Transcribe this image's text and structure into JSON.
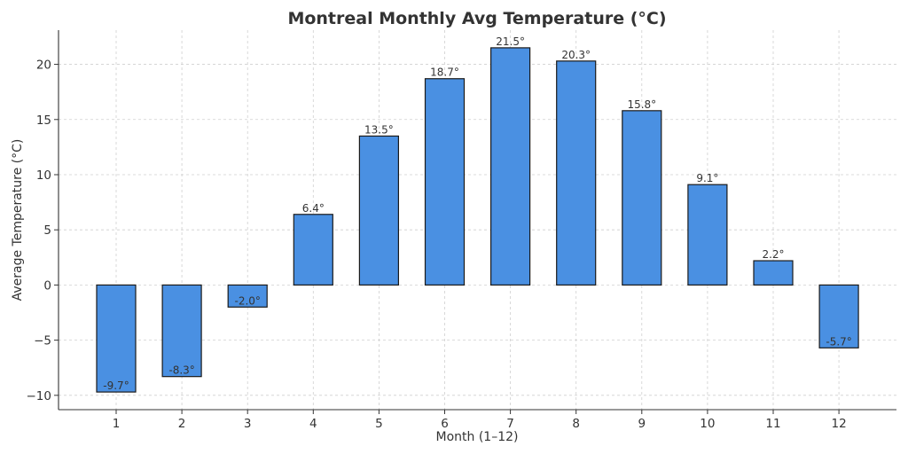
{
  "chart_data": {
    "type": "bar",
    "title": "Montreal Monthly Avg Temperature (°C)",
    "xlabel": "Month (1–12)",
    "ylabel": "Average Temperature (°C)",
    "categories": [
      "1",
      "2",
      "3",
      "4",
      "5",
      "6",
      "7",
      "8",
      "9",
      "10",
      "11",
      "12"
    ],
    "values": [
      -9.7,
      -8.3,
      -2.0,
      6.4,
      13.5,
      18.7,
      21.5,
      20.3,
      15.8,
      9.1,
      2.2,
      -5.7
    ],
    "data_labels": [
      "-9.7°",
      "-8.3°",
      "-2.0°",
      "6.4°",
      "13.5°",
      "18.7°",
      "21.5°",
      "20.3°",
      "15.8°",
      "9.1°",
      "2.2°",
      "-5.7°"
    ],
    "ylim": [
      -11.3,
      23.1
    ],
    "yticks": [
      -10,
      -5,
      0,
      5,
      10,
      15,
      20
    ],
    "ytick_labels": [
      "−10",
      "−5",
      "0",
      "5",
      "10",
      "15",
      "20"
    ],
    "grid": true,
    "legend": "none",
    "bar_color": "#4a90e2",
    "edge_color": "#1a1a1a"
  }
}
